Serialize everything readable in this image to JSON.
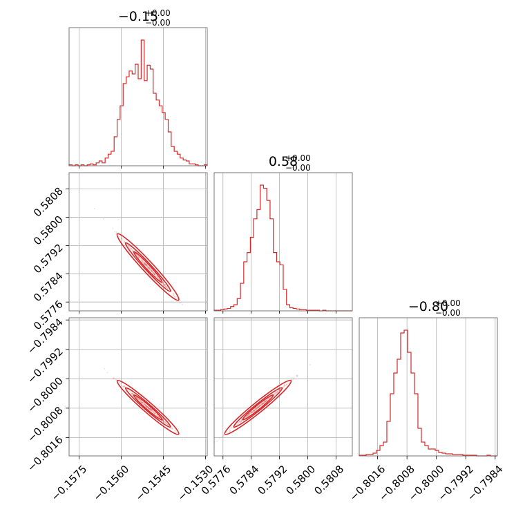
{
  "colors": {
    "accent": "#d62728",
    "grid": "#b0b0b0",
    "frame": "#666666"
  },
  "titles": [
    {
      "value": "−0.15",
      "upper": "+0.00",
      "lower": "−0.00"
    },
    {
      "value": "0.58",
      "upper": "+0.00",
      "lower": "−0.00"
    },
    {
      "value": "−0.80",
      "upper": "+0.00",
      "lower": "−0.00"
    }
  ],
  "chart_data": {
    "type": "scatter",
    "variables": [
      {
        "range": [
          -0.15786,
          -0.15294
        ],
        "ticks": [
          -0.1575,
          -0.156,
          -0.1545,
          -0.153
        ],
        "tick_labels": [
          "−0.1575",
          "−0.1560",
          "−0.1545",
          "−0.1530"
        ]
      },
      {
        "range": [
          0.57735,
          0.58126
        ],
        "ticks": [
          0.5776,
          0.5784,
          0.5792,
          0.58,
          0.5808
        ],
        "tick_labels": [
          "0.5776",
          "0.5784",
          "0.5792",
          "0.5800",
          "0.5808"
        ]
      },
      {
        "range": [
          -0.8021,
          -0.79834
        ],
        "ticks": [
          -0.8016,
          -0.8008,
          -0.8,
          -0.7992,
          -0.7984
        ],
        "tick_labels": [
          "−0.8016",
          "−0.8008",
          "−0.8000",
          "−0.7992",
          "−0.7984"
        ]
      }
    ],
    "histograms": [
      {
        "variable": 0,
        "counts": [
          1,
          0,
          1,
          0,
          1,
          0,
          1,
          2,
          1,
          3,
          5,
          3,
          8,
          12,
          15,
          30,
          48,
          62,
          85,
          92,
          98,
          95,
          105,
          90,
          130,
          88,
          104,
          100,
          75,
          68,
          62,
          55,
          48,
          35,
          20,
          15,
          12,
          8,
          6,
          5,
          2,
          2,
          1,
          0,
          0,
          1
        ]
      },
      {
        "variable": 1,
        "counts": [
          1,
          1,
          2,
          3,
          4,
          7,
          10,
          20,
          45,
          80,
          95,
          120,
          150,
          165,
          205,
          200,
          180,
          150,
          95,
          80,
          75,
          35,
          10,
          5,
          4,
          3,
          2,
          2,
          1,
          1,
          1,
          1,
          0,
          1,
          0,
          0,
          0,
          0,
          0,
          0,
          0,
          0
        ]
      },
      {
        "variable": 2,
        "counts": [
          1,
          1,
          2,
          2,
          4,
          8,
          15,
          20,
          50,
          90,
          120,
          140,
          178,
          182,
          150,
          120,
          90,
          40,
          20,
          15,
          10,
          10,
          8,
          5,
          4,
          3,
          3,
          2,
          2,
          2,
          1,
          1,
          1,
          1,
          0,
          0,
          0,
          1,
          0,
          0
        ]
      }
    ],
    "scatter_pairs": [
      {
        "x_var": 0,
        "y_var": 1,
        "relation": "negative correlation"
      },
      {
        "x_var": 0,
        "y_var": 2,
        "relation": "negative correlation"
      },
      {
        "x_var": 1,
        "y_var": 2,
        "relation": "positive correlation"
      }
    ],
    "xlabel": "",
    "ylabel": "",
    "grid": true
  }
}
